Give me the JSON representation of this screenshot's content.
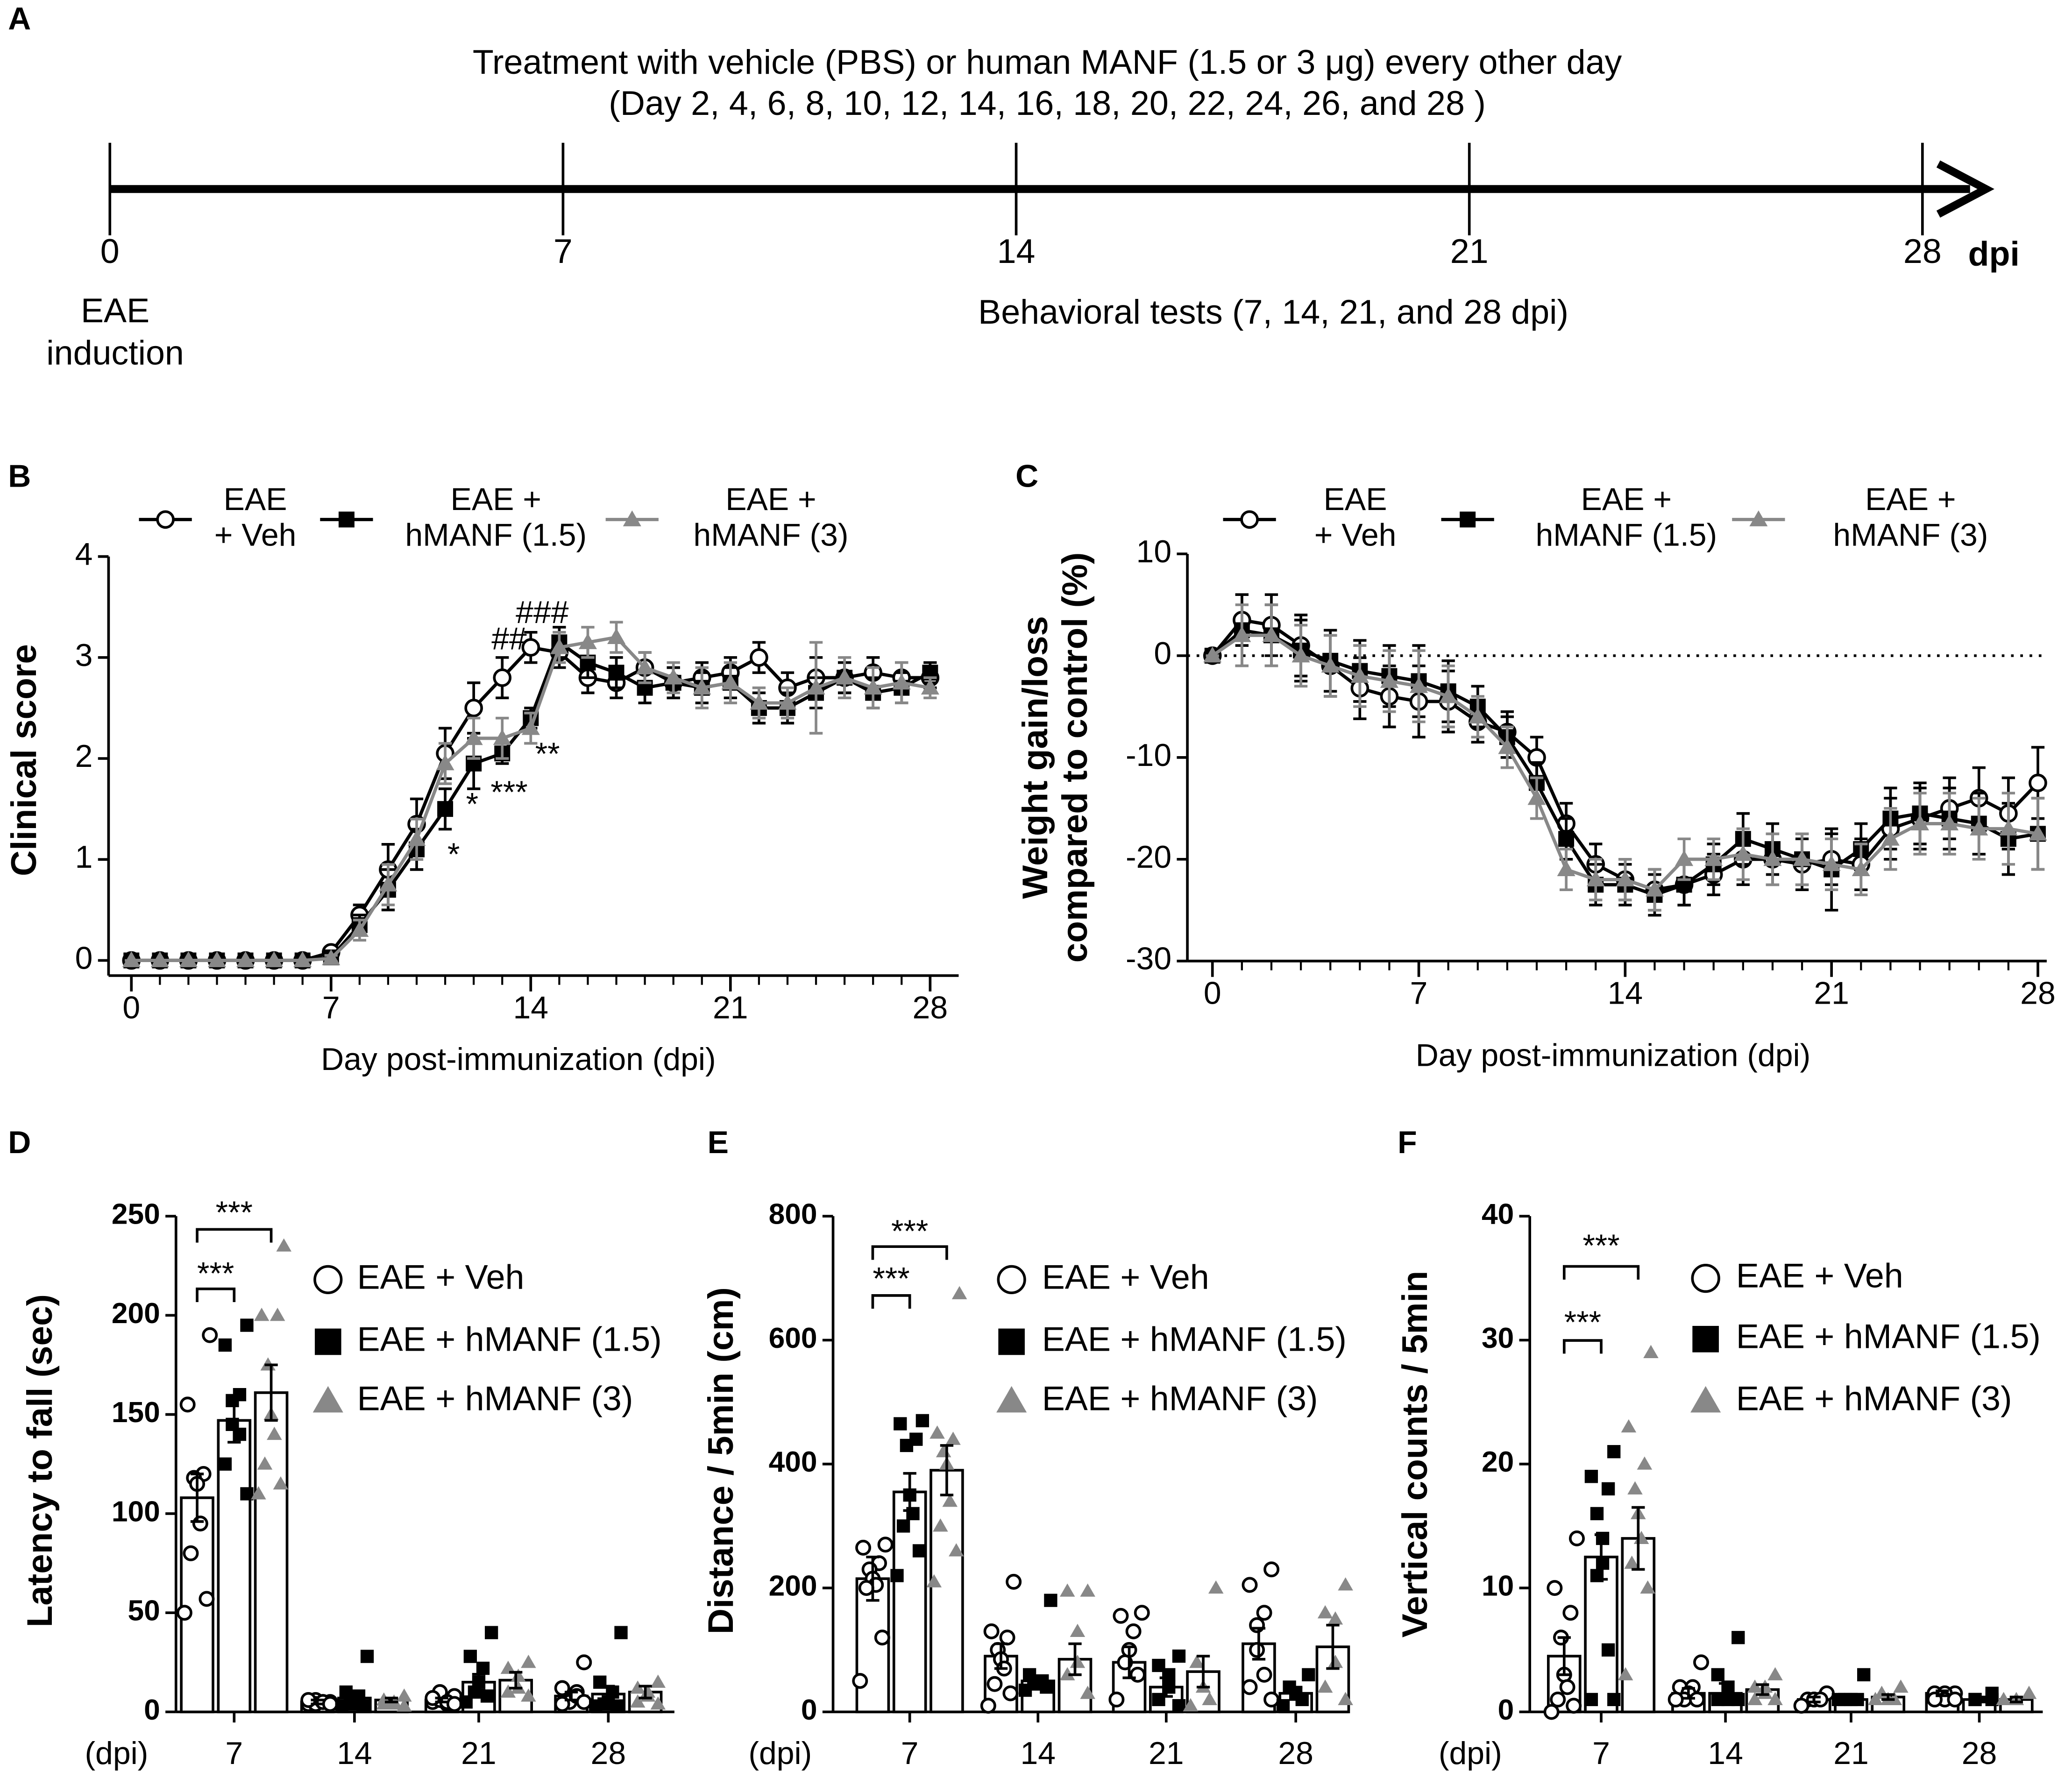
{
  "timeline": {
    "panel": "A",
    "caption": [
      "Treatment with vehicle (PBS) or human MANF (1.5 or 3 μg) every other day",
      "(Day 2, 4, 6, 8, 10, 12, 14, 16, 18, 20, 22, 24, 26, and 28 )"
    ],
    "ticks": [
      0,
      7,
      14,
      21,
      28
    ],
    "unit": "dpi",
    "start_label": "EAE\ninduction",
    "tests_label": "Behavioral tests (7, 14, 21, and 28 dpi)"
  },
  "chart_data": [
    {
      "panel": "B",
      "type": "line",
      "xlabel": "Day post-immunization (dpi)",
      "ylabel": "Clinical score",
      "x": [
        0,
        1,
        2,
        3,
        4,
        5,
        6,
        7,
        8,
        9,
        10,
        11,
        12,
        13,
        14,
        15,
        16,
        17,
        18,
        19,
        20,
        21,
        22,
        23,
        24,
        25,
        26,
        27,
        28
      ],
      "xlim": [
        -0.8,
        29
      ],
      "xticks": [
        0,
        7,
        14,
        21,
        28
      ],
      "ylim": [
        -0.15,
        4
      ],
      "yticks": [
        0,
        1,
        2,
        3,
        4
      ],
      "series": [
        {
          "name": "EAE\n+ Veh",
          "color": "#000000",
          "marker": "circle-open",
          "values": [
            0,
            0,
            0,
            0,
            0,
            0,
            0,
            0.08,
            0.45,
            0.9,
            1.35,
            2.05,
            2.5,
            2.8,
            3.1,
            3.05,
            2.8,
            2.75,
            2.9,
            2.75,
            2.8,
            2.85,
            3.0,
            2.7,
            2.8,
            2.8,
            2.85,
            2.8,
            2.8
          ],
          "errors": [
            0,
            0,
            0,
            0,
            0,
            0,
            0,
            0.05,
            0.1,
            0.25,
            0.25,
            0.25,
            0.25,
            0.2,
            0.15,
            0.15,
            0.15,
            0.15,
            0.15,
            0.15,
            0.15,
            0.15,
            0.15,
            0.15,
            0.2,
            0.15,
            0.15,
            0.15,
            0.1
          ]
        },
        {
          "name": "EAE +\nhMANF (1.5)",
          "color": "#000000",
          "marker": "square",
          "values": [
            0,
            0,
            0,
            0,
            0,
            0,
            0,
            0.03,
            0.35,
            0.7,
            1.1,
            1.5,
            1.95,
            2.05,
            2.4,
            3.15,
            2.95,
            2.85,
            2.7,
            2.75,
            2.7,
            2.75,
            2.5,
            2.5,
            2.65,
            2.8,
            2.65,
            2.7,
            2.85
          ],
          "errors": [
            0,
            0,
            0,
            0,
            0,
            0,
            0,
            0.03,
            0.1,
            0.2,
            0.2,
            0.2,
            0.25,
            0.1,
            0.1,
            0.15,
            0.15,
            0.15,
            0.15,
            0.15,
            0.15,
            0.15,
            0.15,
            0.15,
            0.15,
            0.15,
            0.15,
            0.15,
            0.1
          ]
        },
        {
          "name": "EAE +\nhMANF (3)",
          "color": "#888888",
          "marker": "triangle",
          "values": [
            0,
            0,
            0,
            0,
            0,
            0,
            0,
            0.02,
            0.3,
            0.75,
            1.2,
            1.95,
            2.2,
            2.2,
            2.3,
            3.1,
            3.15,
            3.2,
            2.9,
            2.8,
            2.7,
            2.75,
            2.55,
            2.55,
            2.7,
            2.8,
            2.7,
            2.75,
            2.7
          ],
          "errors": [
            0,
            0,
            0,
            0,
            0,
            0,
            0,
            0.03,
            0.1,
            0.2,
            0.2,
            0.2,
            0.2,
            0.2,
            0.15,
            0.15,
            0.15,
            0.15,
            0.15,
            0.15,
            0.2,
            0.2,
            0.15,
            0.15,
            0.45,
            0.2,
            0.2,
            0.2,
            0.1
          ]
        }
      ],
      "annotations": [
        "*",
        "*",
        "***",
        "**",
        "##",
        "###"
      ]
    },
    {
      "panel": "C",
      "type": "line",
      "xlabel": "Day post-immunization (dpi)",
      "ylabel": "Weight gain/loss\ncompared to control (%)",
      "x": [
        0,
        1,
        2,
        3,
        4,
        5,
        6,
        7,
        8,
        9,
        10,
        11,
        12,
        13,
        14,
        15,
        16,
        17,
        18,
        19,
        20,
        21,
        22,
        23,
        24,
        25,
        26,
        27,
        28
      ],
      "xlim": [
        -0.85,
        28.3
      ],
      "xticks": [
        0,
        7,
        14,
        21,
        28
      ],
      "ylim": [
        -30,
        10
      ],
      "yticks": [
        10,
        0,
        -10,
        -20,
        -30
      ],
      "reference_line": 0,
      "series": [
        {
          "name": "EAE\n+ Veh",
          "color": "#000000",
          "marker": "circle-open",
          "values": [
            0,
            3.5,
            3,
            1,
            -1,
            -3.2,
            -4,
            -4.5,
            -4.5,
            -6.5,
            -7.5,
            -10,
            -16.5,
            -20.5,
            -22,
            -23,
            -22.5,
            -21.5,
            -20,
            -20,
            -20.5,
            -20,
            -20.5,
            -17,
            -16,
            -15,
            -14,
            -15.5,
            -12.5
          ],
          "errors": [
            0,
            2.5,
            3,
            3,
            3,
            3,
            3,
            3.5,
            3,
            2,
            2,
            2,
            2,
            2,
            2,
            2,
            2,
            2,
            2.5,
            2.5,
            2.5,
            2.5,
            2.5,
            3,
            3,
            3,
            3,
            3.5,
            3.5
          ]
        },
        {
          "name": "EAE +\nhMANF (1.5)",
          "color": "#000000",
          "marker": "square",
          "values": [
            0,
            2.5,
            2,
            0.5,
            -0.5,
            -1.5,
            -2,
            -2.5,
            -3.5,
            -5,
            -8,
            -12.5,
            -18,
            -22.5,
            -22.5,
            -23.5,
            -22.5,
            -20.5,
            -18,
            -19,
            -20,
            -21,
            -19,
            -16,
            -15.5,
            -16,
            -16.5,
            -18,
            -17.5
          ],
          "errors": [
            0,
            3.5,
            3,
            3,
            3,
            3,
            3,
            3.5,
            3,
            2,
            2,
            2,
            2,
            2,
            2,
            2,
            2,
            2,
            2.5,
            2.5,
            2.5,
            4,
            2.5,
            3,
            3,
            3,
            3,
            3.5,
            3.5
          ]
        },
        {
          "name": "EAE +\nhMANF (3)",
          "color": "#888888",
          "marker": "triangle",
          "values": [
            0,
            2,
            2,
            0,
            -1,
            -2,
            -2.5,
            -3,
            -4,
            -6,
            -9,
            -14,
            -21,
            -22,
            -22,
            -23,
            -20,
            -20,
            -19.5,
            -20,
            -20,
            -20.5,
            -21,
            -18,
            -16.5,
            -16.5,
            -17,
            -17,
            -17.5
          ],
          "errors": [
            0,
            3,
            3,
            3,
            3,
            3,
            3,
            3.5,
            3,
            2,
            2,
            2,
            2,
            2,
            2,
            2,
            2,
            2,
            2.5,
            2.5,
            2.5,
            2.5,
            2.5,
            3,
            3,
            3,
            3,
            3.5,
            3.5
          ]
        }
      ]
    },
    {
      "panel": "D",
      "type": "bar",
      "xlabel": "(dpi)",
      "ylabel": "Latency to fall (sec)",
      "categories": [
        "7",
        "14",
        "21",
        "28"
      ],
      "ylim": [
        0,
        250
      ],
      "yticks": [
        0,
        50,
        100,
        150,
        200,
        250
      ],
      "series": [
        {
          "name": "EAE + Veh",
          "color": "#ffffff",
          "marker": "circle-open",
          "values": [
            108,
            5,
            6,
            8
          ],
          "errors": [
            12,
            1,
            1,
            2
          ],
          "points": [
            [
              190,
              155,
              120,
              118,
              115,
              95,
              80,
              57,
              50
            ],
            [
              5,
              4,
              5,
              6,
              4,
              5,
              6,
              4
            ],
            [
              8,
              5,
              4,
              6,
              10,
              5,
              7,
              4
            ],
            [
              25,
              12,
              10,
              6,
              5,
              8,
              4,
              5
            ]
          ]
        },
        {
          "name": "EAE + hMANF (1.5)",
          "color": "#000000",
          "marker": "square",
          "values": [
            147,
            7,
            15,
            9
          ],
          "errors": [
            11,
            3,
            4,
            4
          ],
          "points": [
            [
              195,
              185,
              160,
              157,
              145,
              140,
              125,
              110
            ],
            [
              28,
              10,
              8,
              5,
              4,
              3,
              3
            ],
            [
              40,
              28,
              22,
              15,
              10,
              8,
              5
            ],
            [
              40,
              15,
              10,
              5,
              4,
              3,
              3
            ]
          ]
        },
        {
          "name": "EAE + hMANF (3)",
          "color": "#888888",
          "marker": "triangle",
          "values": [
            161,
            6,
            16,
            10
          ],
          "errors": [
            14,
            1,
            4,
            3
          ],
          "points": [
            [
              235,
              200,
              200,
              175,
              150,
              140,
              125,
              115,
              110
            ],
            [
              8,
              6,
              5,
              4,
              4,
              3
            ],
            [
              25,
              22,
              18,
              12,
              10,
              8
            ],
            [
              15,
              12,
              10,
              8,
              5,
              4
            ]
          ]
        }
      ],
      "annotations": [
        "***",
        "***"
      ]
    },
    {
      "panel": "E",
      "type": "bar",
      "xlabel": "(dpi)",
      "ylabel": "Distance / 5min (cm)",
      "categories": [
        "7",
        "14",
        "21",
        "28"
      ],
      "ylim": [
        0,
        800
      ],
      "yticks": [
        0,
        200,
        400,
        600,
        800
      ],
      "series": [
        {
          "name": "EAE + Veh",
          "color": "#ffffff",
          "marker": "circle-open",
          "values": [
            215,
            90,
            80,
            110
          ],
          "errors": [
            35,
            20,
            25,
            25
          ],
          "points": [
            [
              270,
              265,
              240,
              230,
              215,
              205,
              200,
              120,
              50
            ],
            [
              210,
              130,
              120,
              100,
              85,
              70,
              45,
              30,
              10
            ],
            [
              160,
              155,
              130,
              100,
              80,
              60,
              20
            ],
            [
              230,
              205,
              160,
              140,
              100,
              60,
              40,
              20
            ]
          ]
        },
        {
          "name": "EAE + hMANF (1.5)",
          "color": "#000000",
          "marker": "square",
          "values": [
            355,
            50,
            40,
            30
          ],
          "errors": [
            30,
            5,
            15,
            10
          ],
          "points": [
            [
              470,
              465,
              440,
              430,
              350,
              320,
              300,
              260,
              220
            ],
            [
              180,
              60,
              50,
              50,
              45,
              40,
              35
            ],
            [
              90,
              75,
              60,
              40,
              20,
              10
            ],
            [
              60,
              40,
              30,
              20,
              10
            ]
          ]
        },
        {
          "name": "EAE + hMANF (3)",
          "color": "#888888",
          "marker": "triangle",
          "values": [
            390,
            85,
            65,
            105
          ],
          "errors": [
            40,
            25,
            25,
            35
          ],
          "points": [
            [
              675,
              450,
              440,
              420,
              400,
              340,
              300,
              260,
              210
            ],
            [
              195,
              195,
              130,
              80,
              60,
              30
            ],
            [
              200,
              80,
              40,
              20,
              10
            ],
            [
              205,
              160,
              150,
              80,
              40,
              20
            ]
          ]
        }
      ],
      "annotations": [
        "***",
        "***"
      ]
    },
    {
      "panel": "F",
      "type": "bar",
      "xlabel": "(dpi)",
      "ylabel": "Vertical counts / 5min",
      "categories": [
        "7",
        "14",
        "21",
        "28"
      ],
      "ylim": [
        0,
        40
      ],
      "yticks": [
        0,
        10,
        20,
        30,
        40
      ],
      "series": [
        {
          "name": "EAE + Veh",
          "color": "#ffffff",
          "marker": "circle-open",
          "values": [
            4.5,
            1.5,
            1,
            1.5
          ],
          "errors": [
            1.5,
            0.4,
            0.2,
            0.2
          ],
          "points": [
            [
              14,
              10,
              8,
              6,
              3,
              2,
              1,
              0.5,
              0
            ],
            [
              4,
              2,
              2,
              1.5,
              1,
              1,
              1
            ],
            [
              1.5,
              1,
              1,
              1,
              0.5
            ],
            [
              1.5,
              1.5,
              1.5,
              1,
              1,
              1
            ]
          ]
        },
        {
          "name": "EAE + hMANF (1.5)",
          "color": "#000000",
          "marker": "square",
          "values": [
            12.5,
            1.5,
            1,
            1
          ],
          "errors": [
            1.8,
            0.8,
            0.3,
            0.2
          ],
          "points": [
            [
              21,
              19,
              18,
              16,
              14,
              12,
              11,
              5,
              1,
              1
            ],
            [
              6,
              3,
              2,
              1,
              1,
              1
            ],
            [
              3,
              1,
              1,
              1,
              1
            ],
            [
              1.5,
              1,
              1,
              1
            ]
          ]
        },
        {
          "name": "EAE + hMANF (3)",
          "color": "#888888",
          "marker": "triangle",
          "values": [
            14,
            1.8,
            1.2,
            1
          ],
          "errors": [
            2.5,
            0.4,
            0.2,
            0.2
          ],
          "points": [
            [
              29,
              23,
              20,
              18,
              16,
              14,
              12,
              10,
              3
            ],
            [
              3,
              2,
              2,
              1.5,
              1,
              1
            ],
            [
              2,
              1.5,
              1,
              1,
              1
            ],
            [
              1.5,
              1,
              1
            ]
          ]
        }
      ],
      "annotations": [
        "***",
        "***"
      ]
    }
  ]
}
